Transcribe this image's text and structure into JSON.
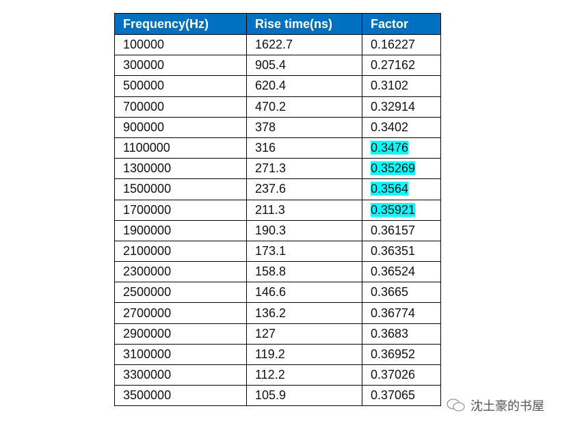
{
  "table": {
    "headers": [
      "Frequency(Hz)",
      "Rise time(ns)",
      "Factor"
    ],
    "highlight_color": "#00ffff",
    "header_color": "#0070c0",
    "rows": [
      {
        "f": "100000",
        "r": "1622.7",
        "k": "0.16227",
        "hl": false
      },
      {
        "f": "300000",
        "r": "905.4",
        "k": "0.27162",
        "hl": false
      },
      {
        "f": "500000",
        "r": "620.4",
        "k": "0.3102",
        "hl": false
      },
      {
        "f": "700000",
        "r": "470.2",
        "k": "0.32914",
        "hl": false
      },
      {
        "f": "900000",
        "r": "378",
        "k": "0.3402",
        "hl": false
      },
      {
        "f": "1100000",
        "r": "316",
        "k": "0.3476",
        "hl": true
      },
      {
        "f": "1300000",
        "r": "271.3",
        "k": "0.35269",
        "hl": true
      },
      {
        "f": "1500000",
        "r": "237.6",
        "k": "0.3564",
        "hl": true
      },
      {
        "f": "1700000",
        "r": "211.3",
        "k": "0.35921",
        "hl": true
      },
      {
        "f": "1900000",
        "r": "190.3",
        "k": "0.36157",
        "hl": false
      },
      {
        "f": "2100000",
        "r": "173.1",
        "k": "0.36351",
        "hl": false
      },
      {
        "f": "2300000",
        "r": "158.8",
        "k": "0.36524",
        "hl": false
      },
      {
        "f": "2500000",
        "r": "146.6",
        "k": "0.3665",
        "hl": false
      },
      {
        "f": "2700000",
        "r": "136.2",
        "k": "0.36774",
        "hl": false
      },
      {
        "f": "2900000",
        "r": "127",
        "k": "0.3683",
        "hl": false
      },
      {
        "f": "3100000",
        "r": "119.2",
        "k": "0.36952",
        "hl": false
      },
      {
        "f": "3300000",
        "r": "112.2",
        "k": "0.37026",
        "hl": false
      },
      {
        "f": "3500000",
        "r": "105.9",
        "k": "0.37065",
        "hl": false
      }
    ]
  },
  "watermark": {
    "text": "沈土豪的书屋",
    "icon": "wechat-icon"
  }
}
